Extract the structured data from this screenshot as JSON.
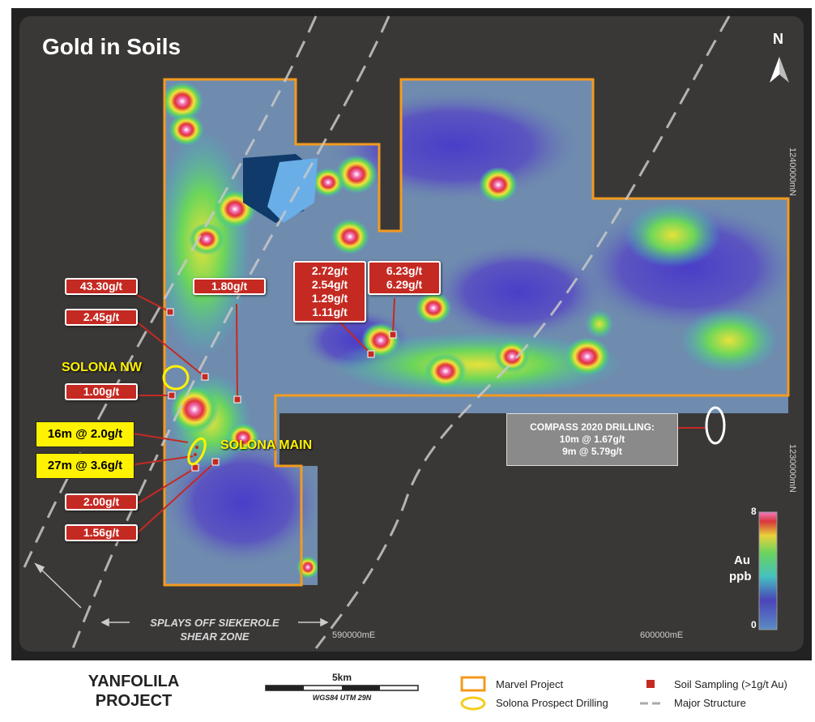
{
  "title": "Gold in Soils",
  "north_label": "N",
  "grid_labels": {
    "northing_1": "1240000mN",
    "northing_2": "1230000mN",
    "easting_1": "590000mE",
    "easting_2": "600000mE"
  },
  "sample_callouts": [
    {
      "id": "c1",
      "lines": [
        "43.30g/t"
      ]
    },
    {
      "id": "c2",
      "lines": [
        "2.45g/t"
      ]
    },
    {
      "id": "c3",
      "lines": [
        "1.80g/t"
      ]
    },
    {
      "id": "c4",
      "lines": [
        "1.00g/t"
      ]
    },
    {
      "id": "c5",
      "lines": [
        "2.72g/t",
        "2.54g/t",
        "1.29g/t",
        "1.11g/t"
      ]
    },
    {
      "id": "c6",
      "lines": [
        "6.23g/t",
        "6.29g/t"
      ]
    },
    {
      "id": "c7",
      "lines": [
        "2.00g/t"
      ]
    },
    {
      "id": "c8",
      "lines": [
        "1.56g/t"
      ]
    }
  ],
  "drill_labels": [
    "16m @ 2.0g/t",
    "27m @ 3.6g/t"
  ],
  "prospects": {
    "solona_nw": "SOLONA NW",
    "solona_main": "SOLONA MAIN"
  },
  "compass_drilling": {
    "title": "COMPASS 2020 DRILLING:",
    "lines": [
      "10m @ 1.67g/t",
      "9m @ 5.79g/t"
    ]
  },
  "structure_label": {
    "line1": "SPLAYS OFF SIEKEROLE",
    "line2": "SHEAR ZONE"
  },
  "colorbar": {
    "max": "8",
    "min": "0",
    "unit_line1": "Au",
    "unit_line2": "ppb"
  },
  "footer": {
    "project_line1": "YANFOLILA",
    "project_line2": "PROJECT",
    "scale_label": "5km",
    "projection": "WGS84 UTM 29N",
    "legend": {
      "marvel_project": "Marvel Project",
      "solona_drilling": "Solona Prospect Drilling",
      "soil_sampling": "Soil Sampling (>1g/t Au)",
      "major_structure": "Major Structure"
    }
  },
  "colors": {
    "map_bg": "#3a3837",
    "project_outline": "#f39a1e",
    "callout_red": "#c42a22",
    "drill_yellow": "#fff200",
    "structure_dash": "#c8c8c8"
  }
}
